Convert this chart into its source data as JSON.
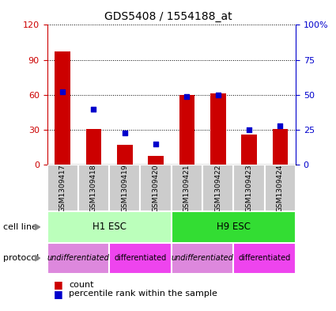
{
  "title": "GDS5408 / 1554188_at",
  "samples": [
    "GSM1309417",
    "GSM1309418",
    "GSM1309419",
    "GSM1309420",
    "GSM1309421",
    "GSM1309422",
    "GSM1309423",
    "GSM1309424"
  ],
  "counts": [
    97,
    31,
    17,
    8,
    60,
    61,
    26,
    31
  ],
  "percentiles": [
    52,
    40,
    23,
    15,
    49,
    50,
    25,
    28
  ],
  "ylim_left": [
    0,
    120
  ],
  "ylim_right": [
    0,
    100
  ],
  "yticks_left": [
    0,
    30,
    60,
    90,
    120
  ],
  "yticks_right": [
    0,
    25,
    50,
    75,
    100
  ],
  "yticklabels_right": [
    "0",
    "25",
    "50",
    "75",
    "100%"
  ],
  "bar_color": "#cc0000",
  "dot_color": "#0000cc",
  "cell_line_groups": [
    {
      "label": "H1 ESC",
      "start": 0,
      "end": 3,
      "color": "#bbffbb"
    },
    {
      "label": "H9 ESC",
      "start": 4,
      "end": 7,
      "color": "#33dd33"
    }
  ],
  "protocol_groups": [
    {
      "label": "undifferentiated",
      "start": 0,
      "end": 1,
      "color": "#dd88dd"
    },
    {
      "label": "differentiated",
      "start": 2,
      "end": 3,
      "color": "#ee44ee"
    },
    {
      "label": "undifferentiated",
      "start": 4,
      "end": 5,
      "color": "#dd88dd"
    },
    {
      "label": "differentiated",
      "start": 6,
      "end": 7,
      "color": "#ee44ee"
    }
  ],
  "left_axis_color": "#cc0000",
  "right_axis_color": "#0000cc",
  "sample_box_color": "#cccccc",
  "arrow_color": "#888888",
  "cell_line_label": "cell line",
  "protocol_label": "protocol",
  "legend_count_color": "#cc0000",
  "legend_percentile_color": "#0000cc",
  "legend_count_label": "count",
  "legend_percentile_label": "percentile rank within the sample"
}
